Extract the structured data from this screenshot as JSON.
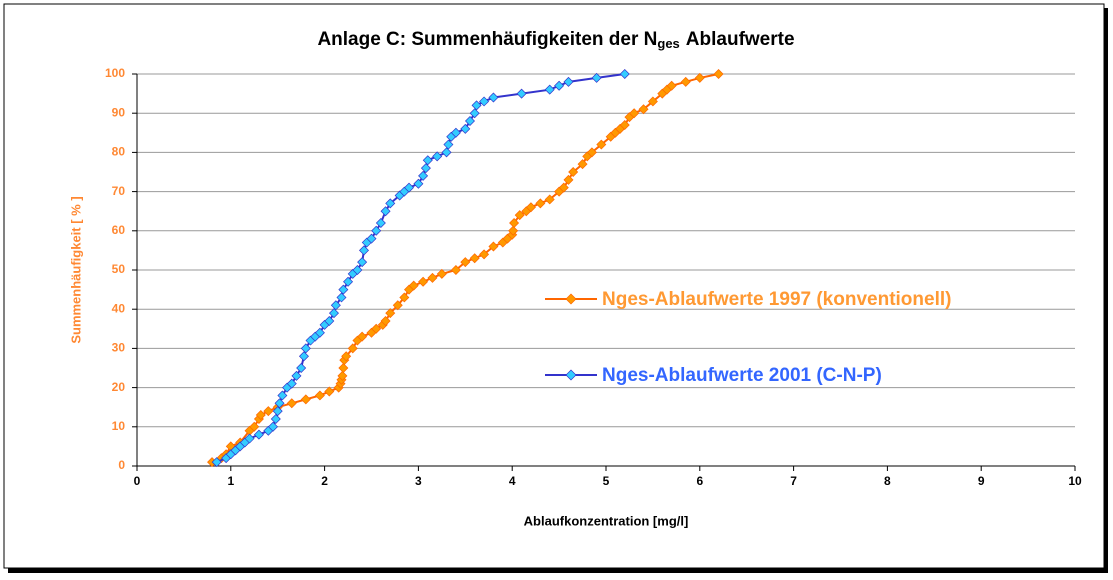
{
  "chart_data": {
    "type": "line",
    "title": [
      "Anlage C: Summenhäufigkeiten der N",
      "ges",
      "Ablaufwerte"
    ],
    "x_label": "Ablaufkonzentration [mg/l]",
    "y_label": "Summenhäufigkeit [ % ]",
    "xlim": [
      0,
      10
    ],
    "xticks": [
      0,
      1,
      2,
      3,
      4,
      5,
      6,
      7,
      8,
      9,
      10
    ],
    "ylim": [
      0,
      100
    ],
    "yticks": [
      0,
      10,
      20,
      30,
      40,
      50,
      60,
      70,
      80,
      90,
      100
    ],
    "grid": true,
    "legend": "right",
    "series": [
      {
        "name": "Nges-Ablaufwerte 1997 (konventionell)",
        "color": "#FF6600",
        "marker_color": "#FF9900",
        "text_color": "#FF9933",
        "x": [
          0.8,
          0.9,
          0.95,
          1.0,
          1.1,
          1.2,
          1.25,
          1.3,
          1.32,
          1.4,
          1.5,
          1.65,
          1.8,
          1.95,
          2.05,
          2.15,
          2.17,
          2.18,
          2.19,
          2.2,
          2.21,
          2.23,
          2.3,
          2.35,
          2.4,
          2.5,
          2.55,
          2.62,
          2.65,
          2.7,
          2.78,
          2.85,
          2.9,
          2.95,
          3.05,
          3.15,
          3.25,
          3.4,
          3.5,
          3.6,
          3.7,
          3.8,
          3.9,
          3.95,
          4.0,
          4.01,
          4.02,
          4.08,
          4.15,
          4.2,
          4.3,
          4.4,
          4.5,
          4.55,
          4.6,
          4.65,
          4.75,
          4.8,
          4.85,
          4.95,
          5.05,
          5.1,
          5.15,
          5.2,
          5.25,
          5.3,
          5.4,
          5.5,
          5.6,
          5.65,
          5.7,
          5.85,
          6.0,
          6.2
        ],
        "values": [
          1,
          2,
          3,
          5,
          6,
          9,
          10,
          12,
          13,
          14,
          15,
          16,
          17,
          18,
          19,
          20,
          21,
          22,
          23,
          25,
          27,
          28,
          30,
          32,
          33,
          34,
          35,
          36,
          37,
          39,
          41,
          43,
          45,
          46,
          47,
          48,
          49,
          50,
          52,
          53,
          54,
          56,
          57,
          58,
          59,
          60,
          62,
          64,
          65,
          66,
          67,
          68,
          70,
          71,
          73,
          75,
          77,
          79,
          80,
          82,
          84,
          85,
          86,
          87,
          89,
          90,
          91,
          93,
          95,
          96,
          97,
          98,
          99,
          100
        ]
      },
      {
        "name": "Nges-Ablaufwerte 2001 (C-N-P)",
        "color": "#3333CC",
        "marker_color": "#33CCFF",
        "text_color": "#3366FF",
        "x": [
          0.85,
          0.95,
          1.0,
          1.05,
          1.1,
          1.15,
          1.2,
          1.3,
          1.4,
          1.45,
          1.48,
          1.5,
          1.52,
          1.55,
          1.6,
          1.65,
          1.7,
          1.75,
          1.78,
          1.8,
          1.85,
          1.9,
          1.95,
          2.0,
          2.05,
          2.1,
          2.12,
          2.18,
          2.2,
          2.25,
          2.3,
          2.35,
          2.4,
          2.42,
          2.45,
          2.5,
          2.55,
          2.6,
          2.65,
          2.7,
          2.8,
          2.85,
          2.9,
          3.0,
          3.05,
          3.08,
          3.1,
          3.2,
          3.3,
          3.32,
          3.35,
          3.4,
          3.5,
          3.55,
          3.6,
          3.62,
          3.7,
          3.8,
          4.1,
          4.4,
          4.5,
          4.6,
          4.9,
          5.2
        ],
        "values": [
          1,
          2,
          3,
          4,
          5,
          6,
          7,
          8,
          9,
          10,
          12,
          14,
          16,
          18,
          20,
          21,
          23,
          25,
          28,
          30,
          32,
          33,
          34,
          36,
          37,
          39,
          41,
          43,
          45,
          47,
          49,
          50,
          52,
          55,
          57,
          58,
          60,
          62,
          65,
          67,
          69,
          70,
          71,
          72,
          74,
          76,
          78,
          79,
          80,
          82,
          84,
          85,
          86,
          88,
          90,
          92,
          93,
          94,
          95,
          96,
          97,
          98,
          99,
          100
        ]
      }
    ]
  }
}
